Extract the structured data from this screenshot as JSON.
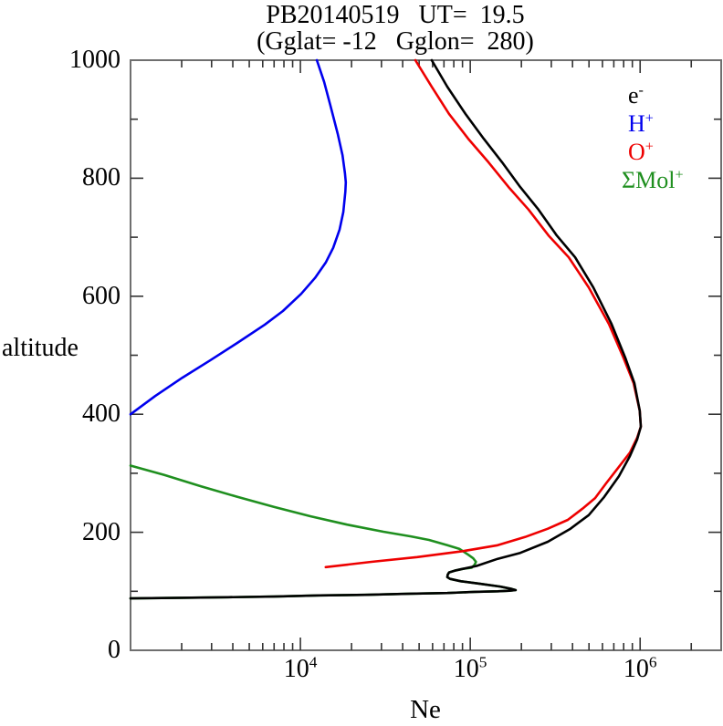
{
  "figure": {
    "title_line1": "PB20140519   UT=  19.5",
    "title_line2": "(Gglat= -12   Gglon=  280)",
    "background_color": "#ffffff",
    "frame_color": "#6f6f6f",
    "tick_color": "#333333",
    "text_color": "#000000"
  },
  "legend": {
    "position": "upper-right-inside",
    "items": [
      {
        "base": "e",
        "sup": "-",
        "color": "#000000",
        "series": "e-"
      },
      {
        "base": "H",
        "sup": "+",
        "color": "#0000ee",
        "series": "H+"
      },
      {
        "base": "O",
        "sup": "+",
        "color": "#ee0000",
        "series": "O+"
      },
      {
        "base": "ΣMol",
        "sup": "+",
        "color": "#1f8f1f",
        "series": "Mol+"
      }
    ]
  },
  "chart_data": {
    "type": "line",
    "title": "PB20140519  UT= 19.5  (Gglat= -12  Gglon= 280)",
    "xlabel": "Ne",
    "ylabel": "altitude",
    "xscale": "log",
    "xlim": [
      1000,
      3000000
    ],
    "ylim": [
      0,
      1000
    ],
    "grid": false,
    "x_major_ticks": [
      {
        "value": 10000,
        "base": "10",
        "exp": "4"
      },
      {
        "value": 100000,
        "base": "10",
        "exp": "5"
      },
      {
        "value": 1000000,
        "base": "10",
        "exp": "6"
      }
    ],
    "y_major_ticks": [
      {
        "value": 0,
        "label": "0"
      },
      {
        "value": 200,
        "label": "200"
      },
      {
        "value": 400,
        "label": "400"
      },
      {
        "value": 600,
        "label": "600"
      },
      {
        "value": 800,
        "label": "800"
      },
      {
        "value": 1000,
        "label": "1000"
      }
    ],
    "y_minor_step": 100,
    "series": [
      {
        "name": "Mol+",
        "label": "ΣMol+",
        "color": "#1f8f1f",
        "points": [
          [
            1000,
            88
          ],
          [
            2020,
            89
          ],
          [
            3760,
            90
          ],
          [
            6980,
            91
          ],
          [
            13000,
            93
          ],
          [
            24000,
            94
          ],
          [
            44700,
            96
          ],
          [
            73300,
            97
          ],
          [
            106000,
            99
          ],
          [
            145000,
            100
          ],
          [
            170000,
            101
          ],
          [
            185000,
            102
          ],
          [
            175000,
            104
          ],
          [
            150000,
            108
          ],
          [
            113000,
            113
          ],
          [
            88100,
            117
          ],
          [
            76000,
            121
          ],
          [
            73300,
            124
          ],
          [
            73600,
            128
          ],
          [
            75000,
            132
          ],
          [
            80900,
            135
          ],
          [
            90400,
            138
          ],
          [
            102000,
            140
          ],
          [
            106000,
            145
          ],
          [
            108000,
            150
          ],
          [
            104000,
            156
          ],
          [
            97300,
            162
          ],
          [
            86100,
            172
          ],
          [
            73300,
            178
          ],
          [
            57100,
            187
          ],
          [
            44700,
            193
          ],
          [
            30800,
            201
          ],
          [
            18800,
            213
          ],
          [
            11500,
            227
          ],
          [
            6980,
            243
          ],
          [
            4260,
            260
          ],
          [
            2590,
            278
          ],
          [
            1580,
            297
          ],
          [
            1000,
            313
          ]
        ]
      },
      {
        "name": "O+",
        "label": "O+",
        "color": "#ee0000",
        "points": [
          [
            14100,
            141
          ],
          [
            26200,
            150
          ],
          [
            48700,
            158
          ],
          [
            90400,
            168
          ],
          [
            145000,
            178
          ],
          [
            210000,
            192
          ],
          [
            286000,
            206
          ],
          [
            375000,
            221
          ],
          [
            458000,
            240
          ],
          [
            543000,
            258
          ],
          [
            631000,
            283
          ],
          [
            750000,
            311
          ],
          [
            870000,
            335
          ],
          [
            960000,
            360
          ],
          [
            1010000,
            379
          ],
          [
            995000,
            406
          ],
          [
            914000,
            453
          ],
          [
            797000,
            496
          ],
          [
            655000,
            553
          ],
          [
            498000,
            615
          ],
          [
            380000,
            666
          ],
          [
            289000,
            703
          ],
          [
            220000,
            747
          ],
          [
            168000,
            785
          ],
          [
            128000,
            827
          ],
          [
            97300,
            867
          ],
          [
            75000,
            909
          ],
          [
            59300,
            955
          ],
          [
            47500,
            1000
          ]
        ]
      },
      {
        "name": "H+",
        "label": "H+",
        "color": "#0000ee",
        "points": [
          [
            1000,
            400
          ],
          [
            1400,
            431
          ],
          [
            2020,
            462
          ],
          [
            2930,
            491
          ],
          [
            4260,
            521
          ],
          [
            6170,
            552
          ],
          [
            7890,
            575
          ],
          [
            10100,
            604
          ],
          [
            12200,
            631
          ],
          [
            14100,
            657
          ],
          [
            15600,
            682
          ],
          [
            17000,
            713
          ],
          [
            17900,
            743
          ],
          [
            18400,
            777
          ],
          [
            18500,
            793
          ],
          [
            18300,
            808
          ],
          [
            17700,
            839
          ],
          [
            16600,
            875
          ],
          [
            15000,
            924
          ],
          [
            13800,
            963
          ],
          [
            12500,
            1000
          ]
        ]
      },
      {
        "name": "e-",
        "label": "e-",
        "color": "#000000",
        "points": [
          [
            1000,
            88
          ],
          [
            2020,
            89
          ],
          [
            3760,
            90
          ],
          [
            6980,
            91
          ],
          [
            13000,
            93
          ],
          [
            24000,
            94
          ],
          [
            44700,
            96
          ],
          [
            73300,
            97
          ],
          [
            106000,
            99
          ],
          [
            145000,
            100
          ],
          [
            170000,
            101
          ],
          [
            185000,
            102
          ],
          [
            175000,
            104
          ],
          [
            150000,
            108
          ],
          [
            113000,
            113
          ],
          [
            88100,
            117
          ],
          [
            76000,
            121
          ],
          [
            73300,
            124
          ],
          [
            73600,
            128
          ],
          [
            75000,
            132
          ],
          [
            80900,
            135
          ],
          [
            90400,
            138
          ],
          [
            109000,
            143
          ],
          [
            145000,
            155
          ],
          [
            197000,
            165
          ],
          [
            286000,
            184
          ],
          [
            389000,
            206
          ],
          [
            498000,
            229
          ],
          [
            615000,
            260
          ],
          [
            750000,
            295
          ],
          [
            870000,
            329
          ],
          [
            960000,
            357
          ],
          [
            1010000,
            379
          ],
          [
            995000,
            406
          ],
          [
            925000,
            453
          ],
          [
            817000,
            496
          ],
          [
            679000,
            553
          ],
          [
            530000,
            615
          ],
          [
            414000,
            666
          ],
          [
            323000,
            703
          ],
          [
            252000,
            747
          ],
          [
            197000,
            785
          ],
          [
            154000,
            827
          ],
          [
            120000,
            867
          ],
          [
            93700,
            909
          ],
          [
            73300,
            955
          ],
          [
            59300,
            1000
          ]
        ]
      }
    ]
  }
}
